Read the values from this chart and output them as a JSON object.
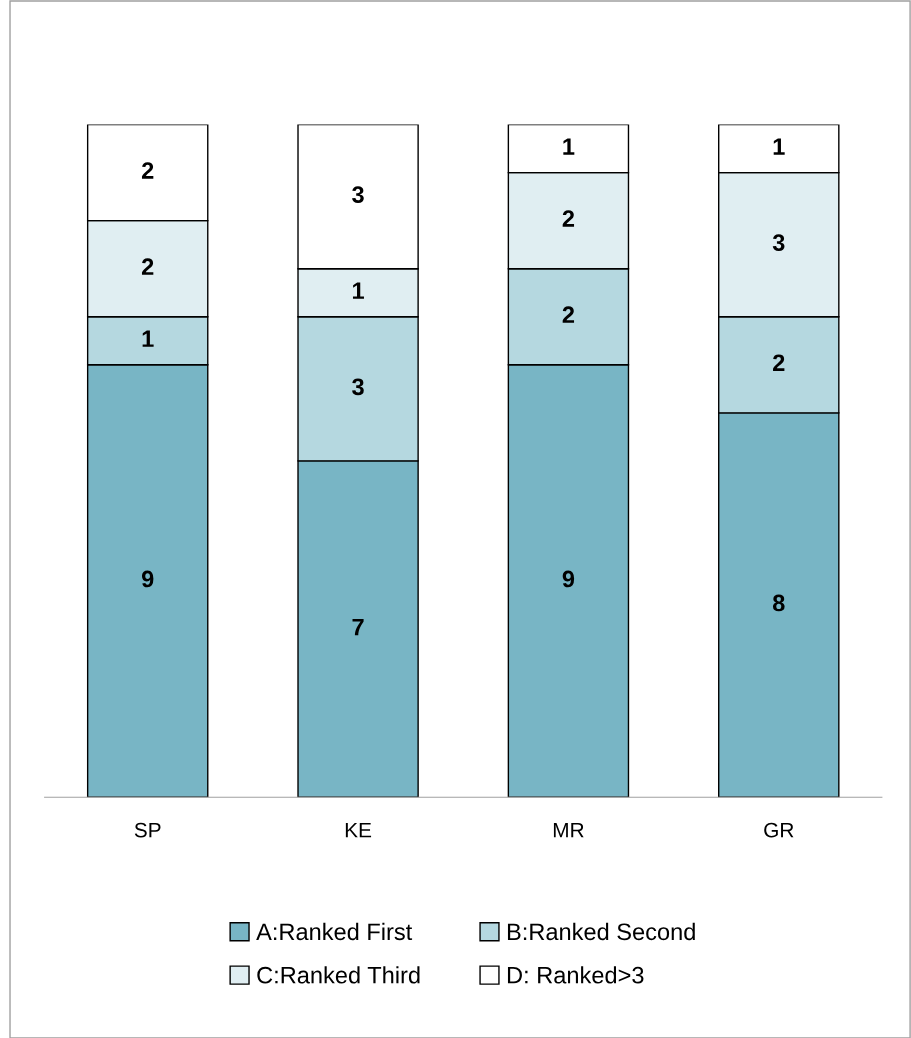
{
  "chart_data": {
    "type": "bar",
    "stacked": true,
    "categories": [
      "SP",
      "KE",
      "MR",
      "GR"
    ],
    "series": [
      {
        "name": "A:Ranked First",
        "color": "#78b5c5",
        "values": [
          9,
          7,
          9,
          8
        ]
      },
      {
        "name": "B:Ranked Second",
        "color": "#b5d8e0",
        "values": [
          1,
          3,
          2,
          2
        ]
      },
      {
        "name": "C:Ranked Third",
        "color": "#e0eef2",
        "values": [
          2,
          1,
          2,
          3
        ]
      },
      {
        "name": "D: Ranked>3",
        "color": "#ffffff",
        "values": [
          2,
          3,
          1,
          1
        ]
      }
    ],
    "data_labels": true,
    "legend": "bottom",
    "grid": false
  }
}
